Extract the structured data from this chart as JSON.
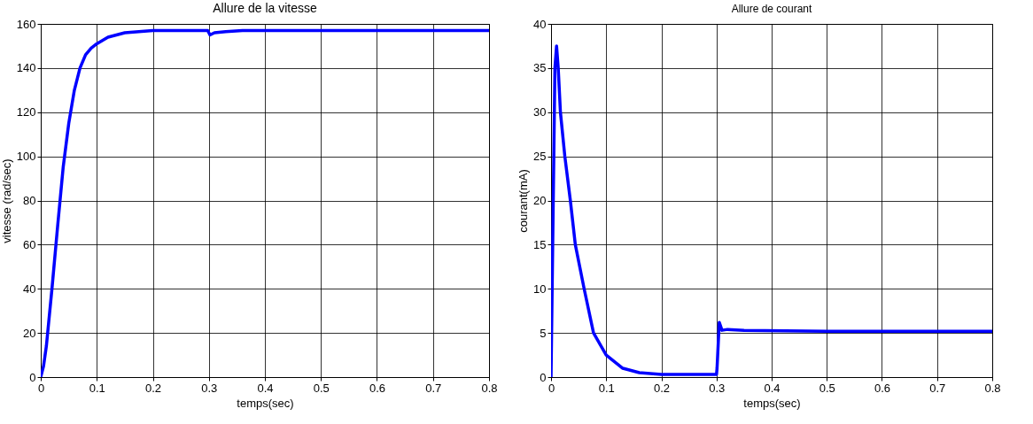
{
  "chart_data": [
    {
      "type": "line",
      "title": "Allure de la vitesse",
      "xlabel": "temps(sec)",
      "ylabel": "vitesse (rad/sec)",
      "x": [
        0,
        0.005,
        0.01,
        0.02,
        0.03,
        0.04,
        0.05,
        0.06,
        0.07,
        0.08,
        0.09,
        0.1,
        0.12,
        0.15,
        0.2,
        0.25,
        0.298,
        0.302,
        0.31,
        0.33,
        0.36,
        0.5,
        0.8
      ],
      "series": [
        {
          "color": "#0000ff",
          "values": [
            0,
            5,
            14,
            40,
            68,
            95,
            115,
            130,
            140,
            146,
            149,
            151,
            154,
            156,
            157,
            157,
            157,
            155,
            156,
            156.5,
            157,
            157,
            157
          ]
        }
      ],
      "xlim": [
        0,
        0.8
      ],
      "ylim": [
        0,
        160
      ],
      "xticks": [
        {
          "value": 0,
          "label": "0"
        },
        0.1,
        0.2,
        0.3,
        0.4,
        0.5,
        0.6,
        0.7,
        0.8
      ],
      "yticks": [
        0,
        20,
        40,
        60,
        80,
        100,
        120,
        140,
        160
      ],
      "grid": true,
      "line_style": "solid"
    },
    {
      "type": "line",
      "title": "Allure de courant",
      "xlabel": "temps(sec)",
      "ylabel": "courant(mA)",
      "x": [
        0,
        0.003,
        0.007,
        0.01,
        0.013,
        0.017,
        0.025,
        0.035,
        0.044,
        0.06,
        0.077,
        0.1,
        0.13,
        0.16,
        0.2,
        0.25,
        0.3,
        0.301,
        0.305,
        0.31,
        0.32,
        0.35,
        0.5,
        0.8
      ],
      "series": [
        {
          "color": "#0000ff",
          "values": [
            0,
            15,
            35,
            37.5,
            35,
            30,
            25,
            20,
            15,
            10,
            5,
            2.5,
            1,
            0.5,
            0.3,
            0.3,
            0.3,
            1,
            6.2,
            5.3,
            5.4,
            5.3,
            5.2,
            5.2
          ]
        }
      ],
      "xlim": [
        0,
        0.8
      ],
      "ylim": [
        0,
        40
      ],
      "xticks": [
        {
          "value": 0,
          "label": "0"
        },
        0.1,
        0.2,
        0.3,
        0.4,
        0.5,
        0.6,
        0.7,
        0.8
      ],
      "yticks": [
        0,
        5,
        10,
        15,
        20,
        25,
        30,
        35,
        40
      ],
      "grid": true,
      "line_style": "solid"
    }
  ]
}
